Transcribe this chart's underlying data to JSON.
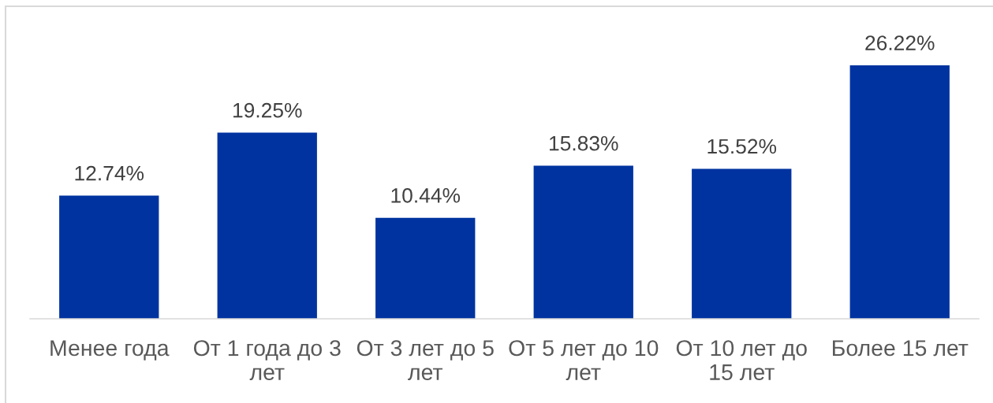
{
  "chart_data": {
    "type": "bar",
    "categories": [
      "Менее года",
      "От 1 года до 3 лет",
      "От 3 лет до 5 лет",
      "От 5 лет до 10 лет",
      "От 10 лет до 15 лет",
      "Более 15 лет"
    ],
    "values": [
      12.74,
      19.25,
      10.44,
      15.83,
      15.52,
      26.22
    ],
    "color": "#0033a0",
    "value_labels": [
      "12.74%",
      "19.25%",
      "10.44%",
      "15.83%",
      "15.52%",
      "26.22%"
    ],
    "tick_labels": "x"
  }
}
